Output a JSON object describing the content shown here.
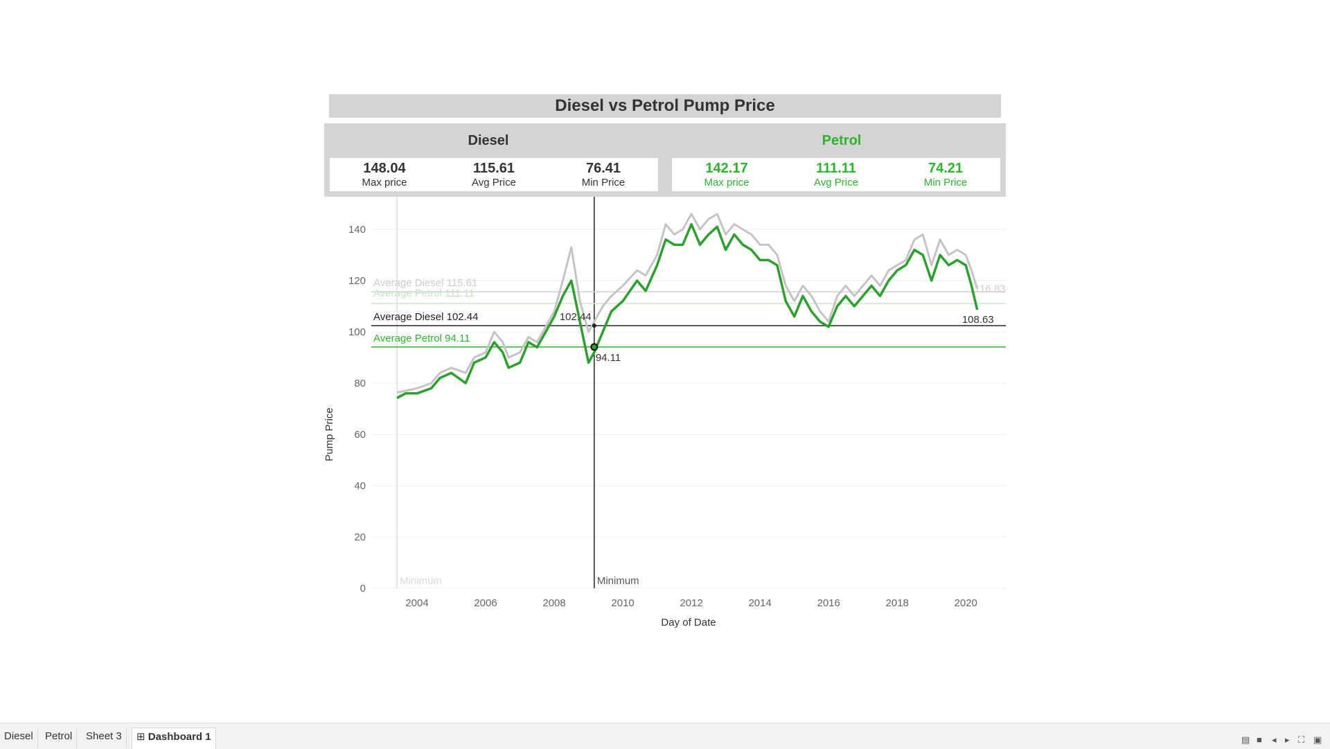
{
  "dashboard": {
    "title": "Diesel vs Petrol Pump Price"
  },
  "kpis": {
    "diesel": {
      "header": "Diesel",
      "max_value": "148.04",
      "max_label": "Max price",
      "avg_value": "115.61",
      "avg_label": "Avg Price",
      "min_value": "76.41",
      "min_label": "Min Price"
    },
    "petrol": {
      "header": "Petrol",
      "max_value": "142.17",
      "max_label": "Max price",
      "avg_value": "111.11",
      "avg_label": "Avg Price",
      "min_value": "74.21",
      "min_label": "Min Price"
    }
  },
  "colors": {
    "diesel": "#c4c4c4",
    "petrol": "#2ca02c",
    "highlight_diesel": "#222222",
    "highlight_petrol": "#2bb52b",
    "faded_diesel": "#cccccc",
    "faded_petrol": "#bfe6bf"
  },
  "chart_data": {
    "type": "line",
    "xlabel": "Day of Date",
    "ylabel": "Pump Price",
    "ylim": [
      0,
      150
    ],
    "xlim": [
      "2002-09",
      "2021-03"
    ],
    "x_ticks": [
      "2004",
      "2006",
      "2008",
      "2010",
      "2012",
      "2014",
      "2016",
      "2018",
      "2020"
    ],
    "y_ticks": [
      0,
      20,
      40,
      60,
      80,
      100,
      120,
      140
    ],
    "grid": true,
    "x": [
      "2003-06",
      "2003-09",
      "2004-01",
      "2004-06",
      "2004-09",
      "2005-01",
      "2005-06",
      "2005-09",
      "2006-01",
      "2006-04",
      "2006-07",
      "2006-09",
      "2007-01",
      "2007-04",
      "2007-07",
      "2007-10",
      "2008-01",
      "2008-04",
      "2008-07",
      "2008-10",
      "2009-01",
      "2009-03",
      "2009-06",
      "2009-09",
      "2010-01",
      "2010-06",
      "2010-09",
      "2011-01",
      "2011-04",
      "2011-07",
      "2011-10",
      "2012-01",
      "2012-04",
      "2012-07",
      "2012-10",
      "2013-01",
      "2013-04",
      "2013-07",
      "2013-10",
      "2014-01",
      "2014-04",
      "2014-07",
      "2014-10",
      "2015-01",
      "2015-04",
      "2015-07",
      "2015-10",
      "2016-01",
      "2016-04",
      "2016-07",
      "2016-10",
      "2017-01",
      "2017-04",
      "2017-07",
      "2017-10",
      "2018-01",
      "2018-04",
      "2018-07",
      "2018-10",
      "2019-01",
      "2019-04",
      "2019-07",
      "2019-10",
      "2020-01",
      "2020-03",
      "2020-05"
    ],
    "series": [
      {
        "name": "Diesel",
        "values": [
          76.41,
          77,
          78,
          80,
          84,
          86,
          84,
          90,
          92,
          100,
          96,
          90,
          92,
          98,
          96,
          102,
          108,
          120,
          133,
          112,
          100,
          104,
          110,
          114,
          118,
          124,
          122,
          130,
          142,
          138,
          140,
          146,
          140,
          144,
          146,
          138,
          142,
          140,
          138,
          134,
          134,
          130,
          118,
          112,
          118,
          114,
          108,
          104,
          114,
          118,
          114,
          118,
          122,
          118,
          124,
          126,
          128,
          136,
          138,
          126,
          136,
          130,
          132,
          130,
          124,
          116.83
        ]
      },
      {
        "name": "Petrol",
        "values": [
          74.21,
          76,
          76,
          78,
          82,
          84,
          80,
          88,
          90,
          96,
          92,
          86,
          88,
          96,
          94,
          100,
          106,
          114,
          120,
          104,
          88,
          92,
          100,
          108,
          112,
          120,
          116,
          126,
          136,
          134,
          134,
          142,
          134,
          138,
          141,
          132,
          138,
          134,
          132,
          128,
          128,
          126,
          112,
          106,
          114,
          108,
          104,
          102,
          110,
          114,
          110,
          114,
          118,
          114,
          120,
          124,
          126,
          132,
          130,
          120,
          130,
          126,
          128,
          126,
          118,
          108.63
        ]
      }
    ],
    "reference_lines": [
      {
        "label": "Average Diesel 115.61",
        "value": 115.61
      },
      {
        "label": "Average Petrol 111.11",
        "value": 111.11
      },
      {
        "label": "Average Diesel 102.44",
        "value": 102.44
      },
      {
        "label": "Average Petrol 94.11",
        "value": 94.11
      }
    ],
    "minimum_lines": [
      {
        "label": "Minimum",
        "date": "2003-06"
      },
      {
        "label": "Minimum",
        "date": "2009-03"
      }
    ],
    "annotations": [
      {
        "text": "102.44",
        "date": "2009-03",
        "value": 102.44
      },
      {
        "text": "94.11",
        "date": "2009-03",
        "value": 94.11
      },
      {
        "text": "116.83",
        "date": "2020-05",
        "value": 116.83
      },
      {
        "text": "108.63",
        "date": "2020-05",
        "value": 108.63
      }
    ]
  },
  "tabs": [
    {
      "label": "Diesel"
    },
    {
      "label": "Petrol"
    },
    {
      "label": "Sheet 3"
    },
    {
      "label": "Dashboard 1"
    }
  ]
}
